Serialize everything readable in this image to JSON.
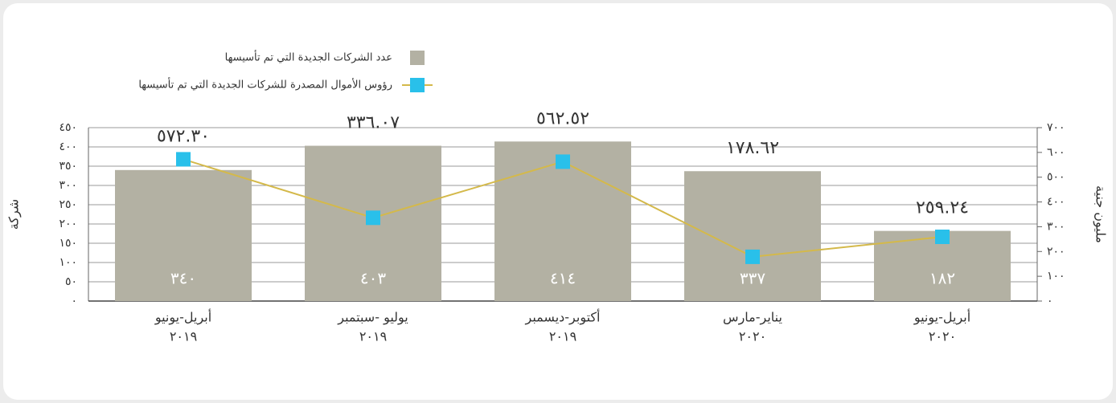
{
  "chart_data": {
    "type": "bar_line",
    "categories": [
      [
        "أبريل-يونيو",
        "٢٠١٩"
      ],
      [
        "يوليو -سبتمبر",
        "٢٠١٩"
      ],
      [
        "أكتوبر-ديسمبر",
        "٢٠١٩"
      ],
      [
        "يناير-مارس",
        "٢٠٢٠"
      ],
      [
        "أبريل-يونيو",
        "٢٠٢٠"
      ]
    ],
    "series": [
      {
        "name": "عدد الشركات الجديدة التي تم تأسيسها",
        "type": "bar",
        "color": "#b3b1a3",
        "values": [
          340,
          403,
          414,
          337,
          182
        ],
        "value_labels": [
          "٣٤٠",
          "٤٠٣",
          "٤١٤",
          "٣٣٧",
          "١٨٢"
        ]
      },
      {
        "name": "رؤوس الأموال المصدرة للشركات الجديدة التي تم تأسيسها",
        "type": "line",
        "axis": "y2",
        "color": "#d4b94a",
        "marker_color": "#29c0ea",
        "values": [
          572.3,
          336.07,
          562.52,
          178.62,
          259.24
        ],
        "value_labels": [
          "٥٧٢.٣٠",
          "٣٣٦.٠٧",
          "٥٦٢.٥٢",
          "١٧٨.٦٢",
          "٢٥٩.٢٤"
        ]
      }
    ],
    "ylabel": "شركة",
    "y2label": "مليون جنية",
    "ylim": [
      0,
      450
    ],
    "yticks": [
      {
        "value": 0,
        "label": "٠"
      },
      {
        "value": 50,
        "label": "٥٠"
      },
      {
        "value": 100,
        "label": "١٠٠"
      },
      {
        "value": 150,
        "label": "١٥٠"
      },
      {
        "value": 200,
        "label": "٢٠٠"
      },
      {
        "value": 250,
        "label": "٢٥٠"
      },
      {
        "value": 300,
        "label": "٣٠٠"
      },
      {
        "value": 350,
        "label": "٣٥٠"
      },
      {
        "value": 400,
        "label": "٤٠٠"
      },
      {
        "value": 450,
        "label": "٤٥٠"
      }
    ],
    "y2lim": [
      0,
      700
    ],
    "y2ticks": [
      {
        "value": 0,
        "label": "٠"
      },
      {
        "value": 100,
        "label": "١٠٠"
      },
      {
        "value": 200,
        "label": "٢٠٠"
      },
      {
        "value": 300,
        "label": "٣٠٠"
      },
      {
        "value": 400,
        "label": "٤٠٠"
      },
      {
        "value": 500,
        "label": "٥٠٠"
      },
      {
        "value": 600,
        "label": "٦٠٠"
      },
      {
        "value": 700,
        "label": "٧٠٠"
      }
    ],
    "grid": true,
    "legend": "top-left"
  }
}
